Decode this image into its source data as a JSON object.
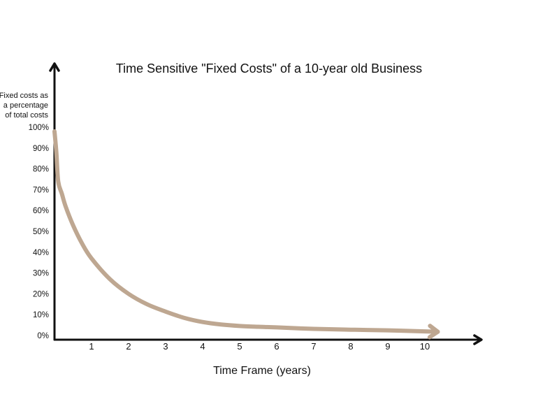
{
  "chart_data": {
    "type": "line",
    "title": "Time Sensitive \"Fixed Costs\" of a 10-year old Business",
    "ylabel_lines": [
      "Fixed costs as",
      "a percentage",
      "of total costs"
    ],
    "xlabel": "Time Frame (years)",
    "xlim": [
      0,
      10.5
    ],
    "ylim": [
      0,
      100
    ],
    "x_ticks": [
      "1",
      "2",
      "3",
      "4",
      "5",
      "6",
      "7",
      "8",
      "9",
      "10"
    ],
    "y_ticks": [
      "0%",
      "10%",
      "20%",
      "30%",
      "40%",
      "50%",
      "60%",
      "70%",
      "80%",
      "90%",
      "100%"
    ],
    "series": [
      {
        "x": [
          0,
          0.05,
          0.1,
          0.2,
          0.3,
          0.5,
          0.75,
          1,
          1.5,
          2,
          2.5,
          3,
          3.5,
          4,
          4.5,
          5,
          5.5,
          6,
          7,
          8,
          9,
          10,
          10.35
        ],
        "y": [
          100,
          90,
          76,
          70,
          64,
          55,
          46,
          39,
          29,
          22,
          17,
          13.5,
          10.5,
          8.5,
          7.3,
          6.6,
          6.2,
          5.9,
          5.2,
          4.8,
          4.5,
          4,
          3.8
        ],
        "color": "#bea791"
      }
    ],
    "grid": false,
    "legend": "none"
  },
  "colors": {
    "axis": "#111111",
    "curve": "#bea791"
  }
}
